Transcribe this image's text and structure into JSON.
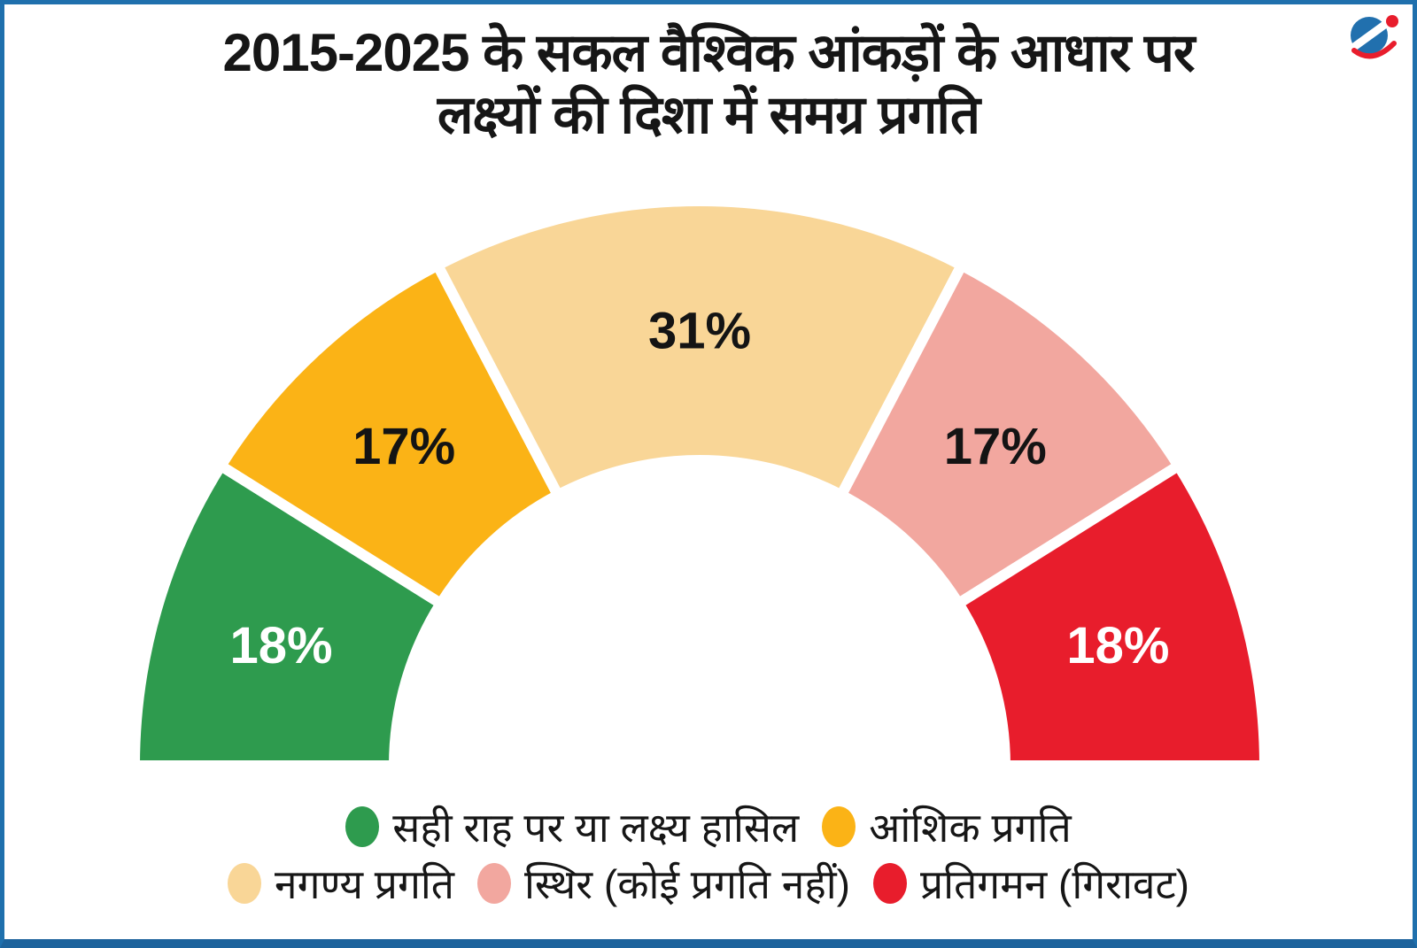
{
  "title": {
    "line1": "2015-2025 के सकल वैश्विक आंकड़ों के आधार पर",
    "line2": "लक्ष्यों की दिशा में समग्र प्रगति"
  },
  "frame": {
    "border_color": "#1f70ad"
  },
  "logo": {
    "blue": "#2170ae",
    "red": "#e81d2c"
  },
  "chart_data": {
    "type": "pie",
    "subtype": "half-donut-gauge",
    "title": "2015-2025 के सकल वैश्विक आंकड़ों के आधार पर लक्ष्यों की दिशा में समग्र प्रगति",
    "unit": "%",
    "start_angle_deg": 180,
    "end_angle_deg": 0,
    "inner_radius_ratio": 0.54,
    "legend_position": "bottom",
    "segments": [
      {
        "label": "सही राह पर या लक्ष्य हासिल",
        "value": 18,
        "value_label": "18%",
        "color": "#2e9b4e",
        "value_label_color": "#ffffff"
      },
      {
        "label": "आंशिक प्रगति",
        "value": 17,
        "value_label": "17%",
        "color": "#fbb316",
        "value_label_color": "#141414"
      },
      {
        "label": "नगण्य प्रगति",
        "value": 31,
        "value_label": "31%",
        "color": "#f9d697",
        "value_label_color": "#141414"
      },
      {
        "label": "स्थिर (कोई प्रगति नहीं)",
        "value": 17,
        "value_label": "17%",
        "color": "#f2a79f",
        "value_label_color": "#141414"
      },
      {
        "label": "प्रतिगमन (गिरावट)",
        "value": 18,
        "value_label": "18%",
        "color": "#e81d2c",
        "value_label_color": "#ffffff"
      }
    ]
  }
}
